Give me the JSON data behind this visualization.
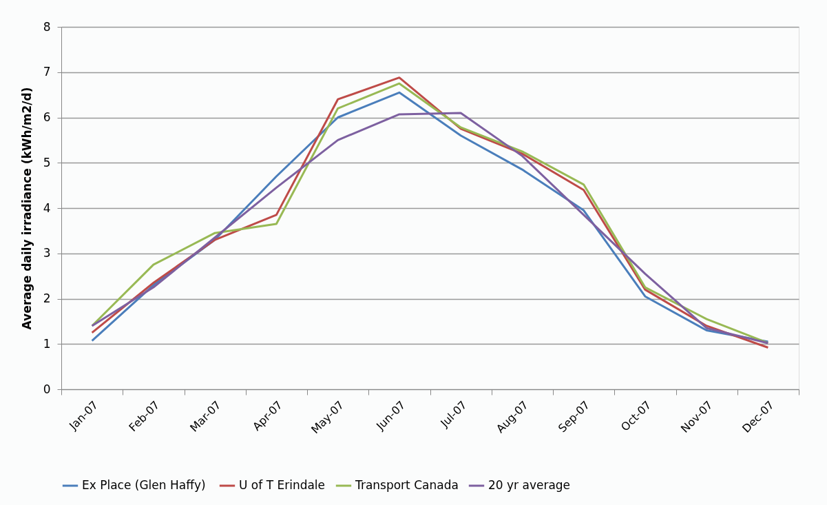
{
  "chart_data": {
    "type": "line",
    "ylabel": "Average daily irradiance  (kWh/m2/d)",
    "categories": [
      "Jan-07",
      "Feb-07",
      "Mar-07",
      "Apr-07",
      "May-07",
      "Jun-07",
      "Jul-07",
      "Aug-07",
      "Sep-07",
      "Oct-07",
      "Nov-07",
      "Dec-07"
    ],
    "series": [
      {
        "name": "Ex Place (Glen  Haffy)",
        "color": "#4a7ebb",
        "values": [
          1.07,
          2.3,
          3.3,
          4.7,
          6.0,
          6.55,
          5.6,
          4.85,
          3.95,
          2.05,
          1.3,
          1.05
        ]
      },
      {
        "name": "U of T Erindale",
        "color": "#be4b48",
        "values": [
          1.25,
          2.35,
          3.3,
          3.85,
          6.4,
          6.88,
          5.75,
          5.2,
          4.4,
          2.2,
          1.4,
          0.92
        ]
      },
      {
        "name": "Transport Canada",
        "color": "#98b954",
        "values": [
          1.4,
          2.75,
          3.45,
          3.65,
          6.2,
          6.75,
          5.78,
          5.25,
          4.52,
          2.25,
          1.55,
          1.02
        ]
      },
      {
        "name": "20 yr average",
        "color": "#7d60a0",
        "values": [
          1.4,
          2.25,
          3.35,
          4.45,
          5.5,
          6.07,
          6.1,
          5.15,
          3.85,
          2.55,
          1.35,
          1.02
        ]
      }
    ],
    "ylim": [
      0,
      8
    ],
    "yticks": [
      0,
      1,
      2,
      3,
      4,
      5,
      6,
      7,
      8
    ],
    "grid": "y",
    "legend": "bottom",
    "marker": "none",
    "line_style": "solid"
  }
}
